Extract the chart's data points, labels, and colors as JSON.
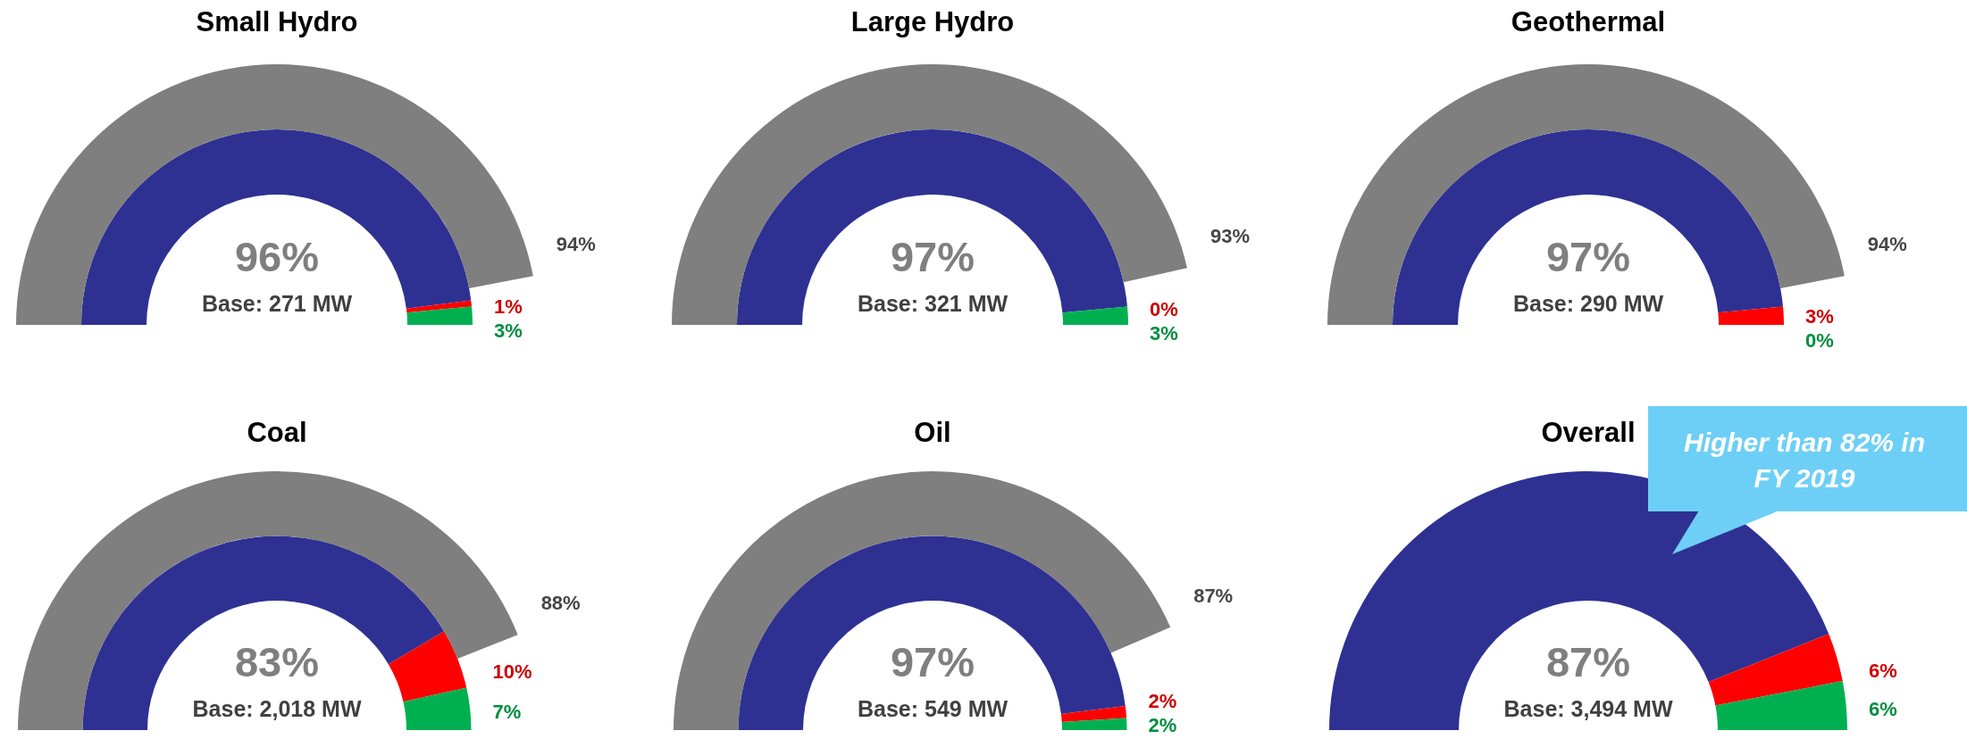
{
  "chart_data": [
    {
      "type": "donut",
      "title": "Small Hydro",
      "categories": [
        null,
        null,
        null
      ],
      "series": [
        {
          "color": "#7f7f7f",
          "values": [
            94,
            null,
            null
          ],
          "value_labels": [
            "94%",
            null,
            null
          ]
        },
        {
          "colors": [
            "#2e3192",
            "#ff0000",
            "#00b050"
          ],
          "values": [
            96,
            1,
            3
          ],
          "value_labels": [
            "96%",
            "1%",
            "3%"
          ]
        }
      ],
      "annotations": [
        "Base: 271 MW"
      ]
    },
    {
      "type": "donut",
      "title": "Large Hydro",
      "categories": [
        null,
        null,
        null
      ],
      "series": [
        {
          "color": "#7f7f7f",
          "values": [
            93,
            null,
            null
          ],
          "value_labels": [
            "93%",
            null,
            null
          ]
        },
        {
          "colors": [
            "#2e3192",
            "#ff0000",
            "#00b050"
          ],
          "values": [
            97,
            0,
            3
          ],
          "value_labels": [
            "97%",
            "0%",
            "3%"
          ]
        }
      ],
      "annotations": [
        "Base: 321 MW"
      ]
    },
    {
      "type": "donut",
      "title": "Geothermal",
      "categories": [
        null,
        null,
        null
      ],
      "series": [
        {
          "color": "#7f7f7f",
          "values": [
            94,
            null,
            null
          ],
          "value_labels": [
            "94%",
            null,
            null
          ]
        },
        {
          "colors": [
            "#2e3192",
            "#ff0000",
            "#00b050"
          ],
          "values": [
            97,
            3,
            0
          ],
          "value_labels": [
            "97%",
            "3%",
            "0%"
          ]
        }
      ],
      "annotations": [
        "Base: 290 MW"
      ]
    },
    {
      "type": "donut",
      "title": "Coal",
      "categories": [
        null,
        null,
        null
      ],
      "series": [
        {
          "color": "#7f7f7f",
          "values": [
            88,
            null,
            null
          ],
          "value_labels": [
            "88%",
            null,
            null
          ]
        },
        {
          "colors": [
            "#2e3192",
            "#ff0000",
            "#00b050"
          ],
          "values": [
            83,
            10,
            7
          ],
          "value_labels": [
            "83%",
            "10%",
            "7%"
          ]
        }
      ],
      "annotations": [
        "Base: 2,018 MW"
      ]
    },
    {
      "type": "donut",
      "title": "Oil",
      "categories": [
        null,
        null,
        null
      ],
      "series": [
        {
          "color": "#7f7f7f",
          "values": [
            87,
            null,
            null
          ],
          "value_labels": [
            "87%",
            null,
            null
          ]
        },
        {
          "colors": [
            "#2e3192",
            "#ff0000",
            "#00b050"
          ],
          "values": [
            97,
            2,
            2
          ],
          "value_labels": [
            "97%",
            "2%",
            "2%"
          ]
        }
      ],
      "annotations": [
        "Base: 549 MW"
      ]
    },
    {
      "type": "donut",
      "title": "Overall",
      "categories": [
        null,
        null,
        null
      ],
      "series": [
        {
          "colors": [
            "#2e3192",
            "#ff0000",
            "#00b050"
          ],
          "values": [
            87,
            6,
            6
          ],
          "value_labels": [
            "87%",
            "6%",
            "6%"
          ]
        }
      ],
      "annotations": [
        "Base: 3,494 MW",
        "Higher than 82% in FY 2019"
      ]
    }
  ]
}
